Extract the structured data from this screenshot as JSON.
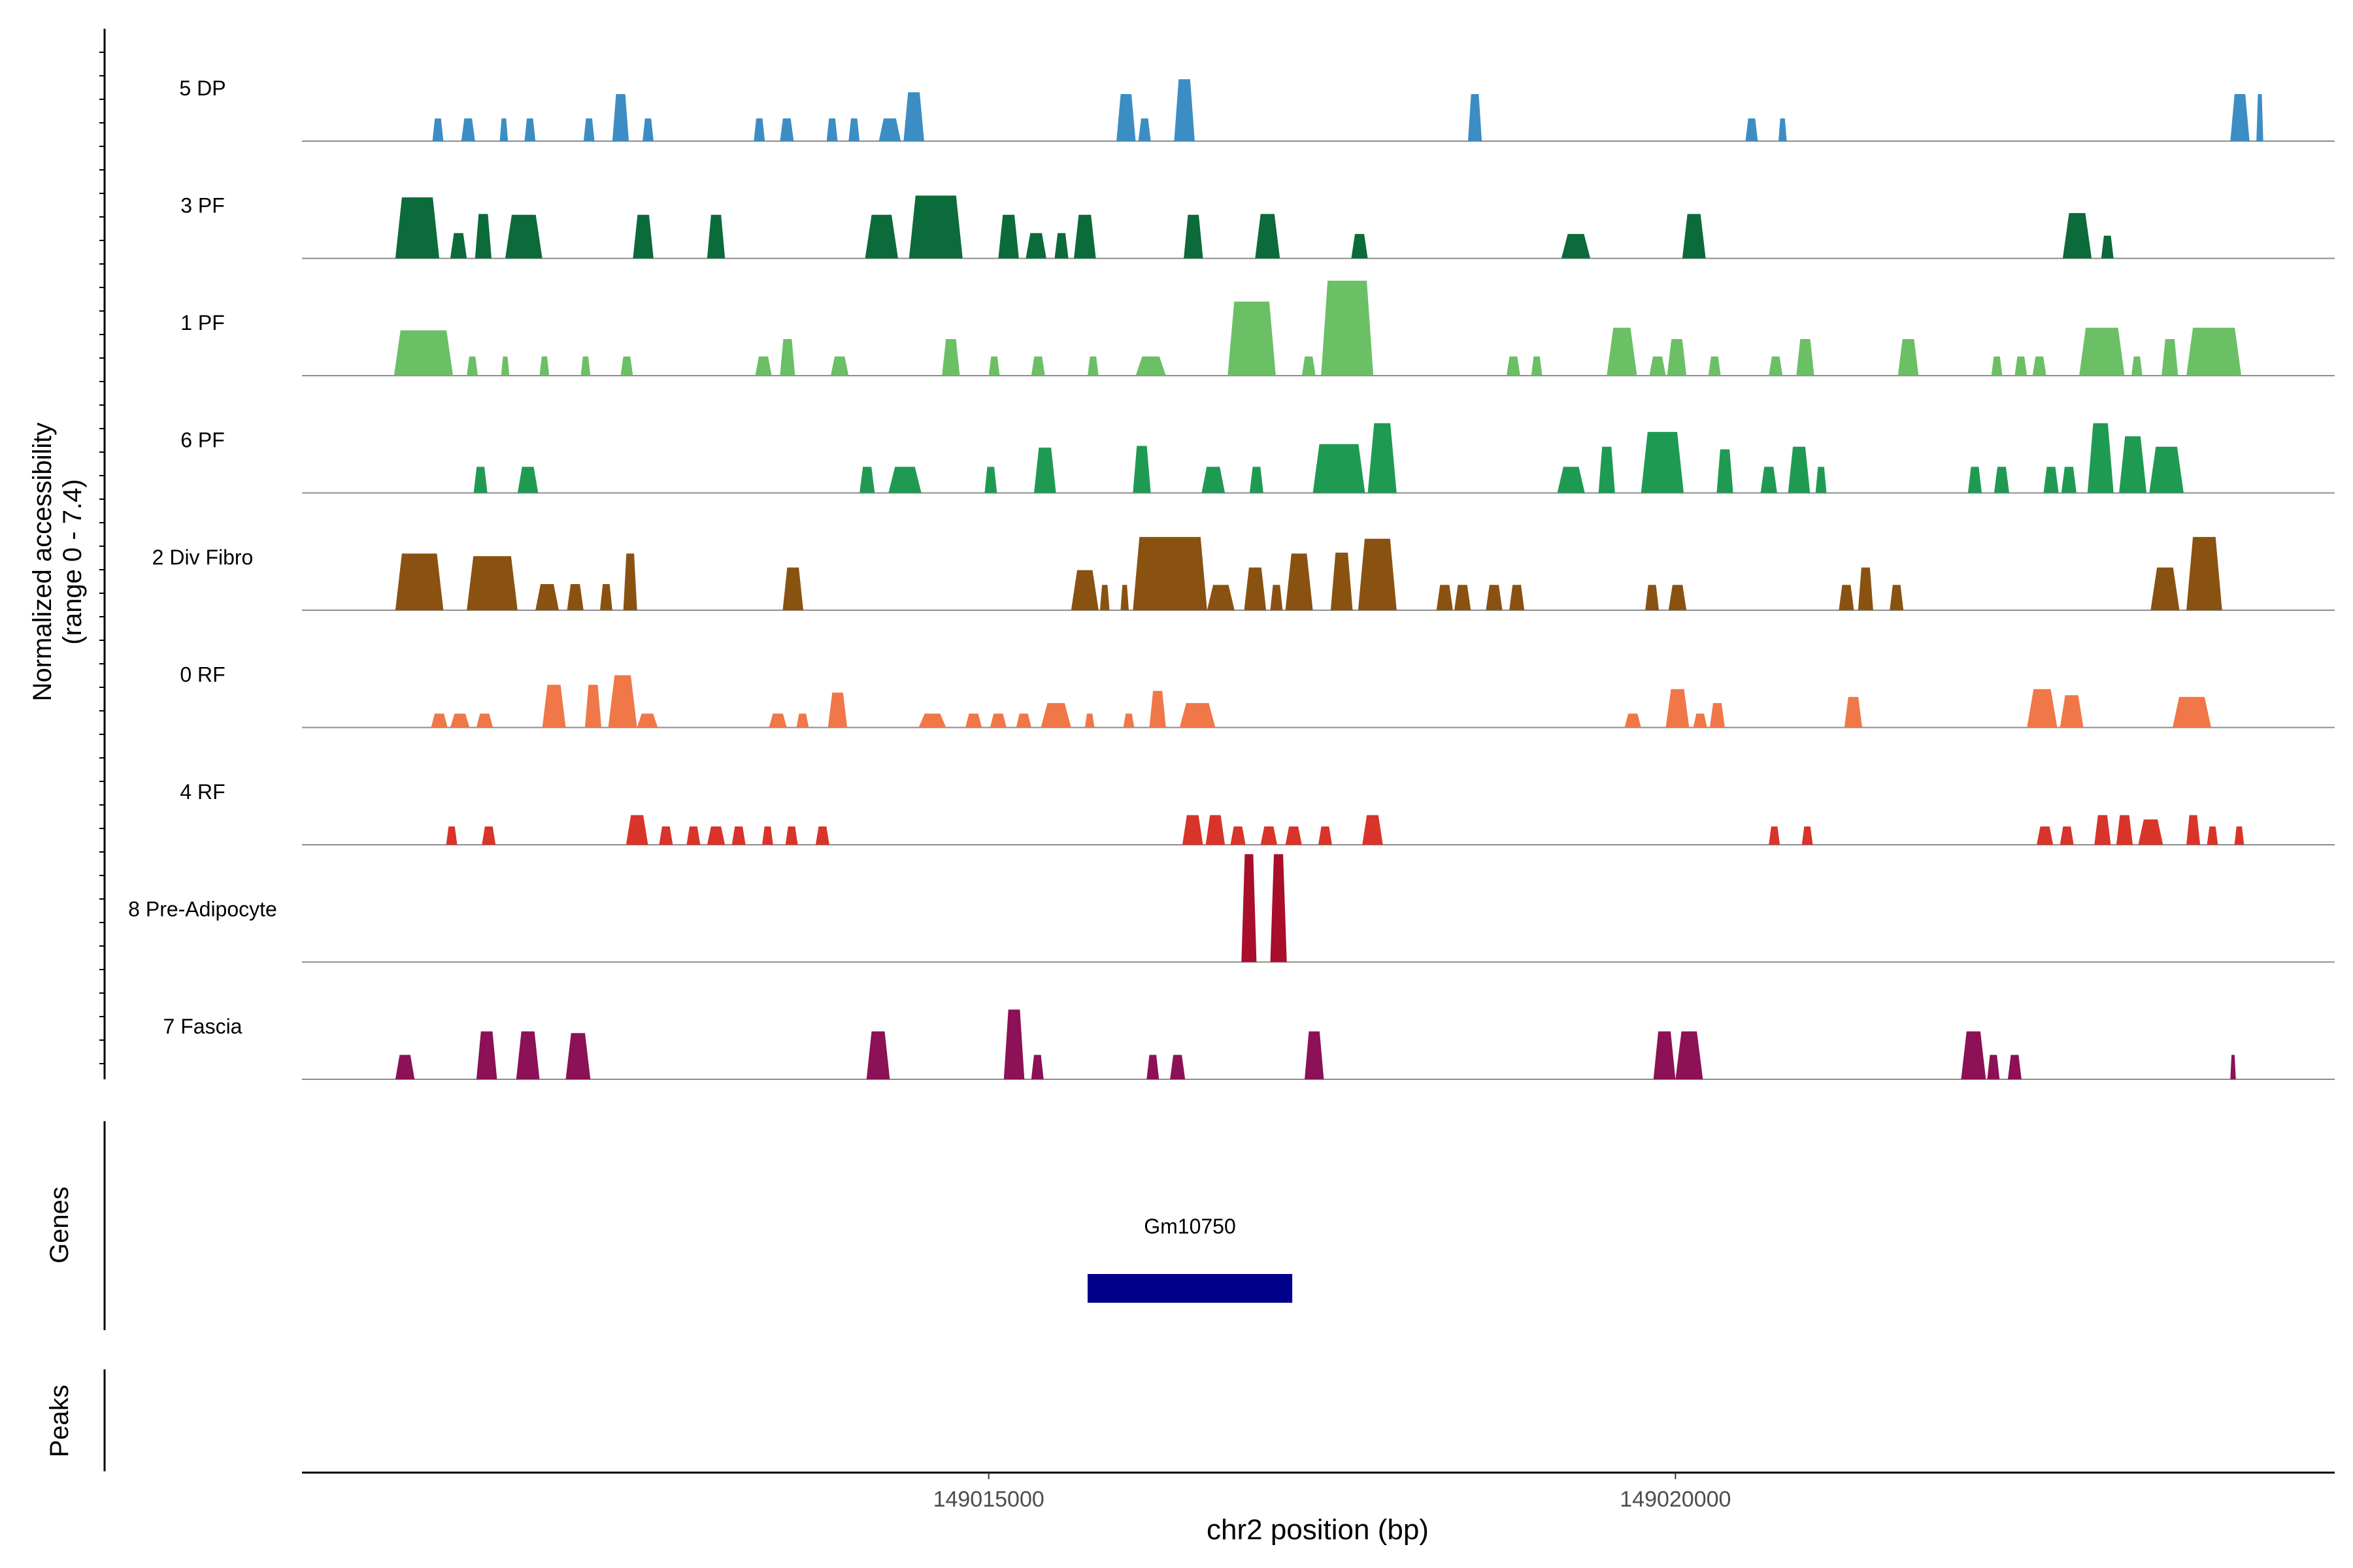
{
  "chart_data": {
    "type": "area",
    "title": "",
    "ylabel_line1": "Normalized accessibility",
    "ylabel_line2": "(range 0 - 7.4)",
    "xlabel": "chr2 position (bp)",
    "xlim": [
      149010000,
      149024800
    ],
    "ylim": [
      0,
      7.4
    ],
    "x_ticks": [
      149015000,
      149020000
    ],
    "x_tick_labels": [
      "149015000",
      "149020000"
    ],
    "genes_label": "Genes",
    "peaks_label": "Peaks",
    "gene": {
      "name": "Gm10750",
      "start": 149015720,
      "end": 149017210
    },
    "tracks": [
      {
        "name": "5 DP",
        "color": "#3C8DC4",
        "peaks": [
          [
            149010950,
            149011030,
            2.6
          ],
          [
            149011160,
            149011260,
            2.6
          ],
          [
            149011440,
            149011500,
            2.6
          ],
          [
            149011620,
            149011700,
            2.6
          ],
          [
            149012050,
            149012130,
            2.6
          ],
          [
            149012260,
            149012380,
            5.4
          ],
          [
            149012480,
            149012560,
            2.6
          ],
          [
            149013290,
            149013370,
            2.6
          ],
          [
            149013480,
            149013580,
            2.6
          ],
          [
            149013820,
            149013900,
            2.6
          ],
          [
            149013980,
            149014060,
            2.6
          ],
          [
            149014200,
            149014360,
            2.6
          ],
          [
            149014380,
            149014530,
            5.6
          ],
          [
            149015930,
            149016070,
            5.4
          ],
          [
            149016090,
            149016180,
            2.6
          ],
          [
            149016350,
            149016500,
            7.1
          ],
          [
            149018490,
            149018590,
            5.4
          ],
          [
            149020510,
            149020600,
            2.6
          ],
          [
            149020750,
            149020810,
            2.6
          ],
          [
            149024040,
            149024180,
            5.4
          ],
          [
            149024230,
            149024280,
            5.4
          ]
        ]
      },
      {
        "name": "3 PF",
        "color": "#0B6B3A",
        "peaks": [
          [
            149010680,
            149011000,
            7.0
          ],
          [
            149011080,
            149011200,
            2.9
          ],
          [
            149011260,
            149011380,
            5.1
          ],
          [
            149011480,
            149011750,
            5.0
          ],
          [
            149012410,
            149012560,
            5.0
          ],
          [
            149012950,
            149013080,
            5.0
          ],
          [
            149014100,
            149014340,
            5.0
          ],
          [
            149014420,
            149014810,
            7.2
          ],
          [
            149015070,
            149015220,
            5.0
          ],
          [
            149015270,
            149015420,
            2.9
          ],
          [
            149015480,
            149015580,
            2.9
          ],
          [
            149015620,
            149015780,
            5.0
          ],
          [
            149016420,
            149016560,
            5.0
          ],
          [
            149016940,
            149017120,
            5.1
          ],
          [
            149017640,
            149017760,
            2.8
          ],
          [
            149019170,
            149019380,
            2.8
          ],
          [
            149020050,
            149020220,
            5.1
          ],
          [
            149022820,
            149023030,
            5.2
          ],
          [
            149023100,
            149023190,
            2.6
          ]
        ]
      },
      {
        "name": "1 PF",
        "color": "#6BBF65",
        "peaks": [
          [
            149010670,
            149011100,
            5.2
          ],
          [
            149011200,
            149011280,
            2.2
          ],
          [
            149011450,
            149011510,
            2.2
          ],
          [
            149011730,
            149011800,
            2.2
          ],
          [
            149012030,
            149012100,
            2.2
          ],
          [
            149012320,
            149012410,
            2.2
          ],
          [
            149013300,
            149013420,
            2.2
          ],
          [
            149013480,
            149013590,
            4.2
          ],
          [
            149013850,
            149013980,
            2.2
          ],
          [
            149014660,
            149014790,
            4.2
          ],
          [
            149015000,
            149015080,
            2.2
          ],
          [
            149015310,
            149015410,
            2.2
          ],
          [
            149015720,
            149015800,
            2.2
          ],
          [
            149016070,
            149016290,
            2.2
          ],
          [
            149016740,
            149017090,
            8.5
          ],
          [
            149017280,
            149017380,
            2.2
          ],
          [
            149017420,
            149017800,
            10.9
          ],
          [
            149018770,
            149018870,
            2.2
          ],
          [
            149018950,
            149019030,
            2.2
          ],
          [
            149019500,
            149019720,
            5.5
          ],
          [
            149019810,
            149019930,
            2.2
          ],
          [
            149019940,
            149020080,
            4.2
          ],
          [
            149020240,
            149020330,
            2.2
          ],
          [
            149020680,
            149020780,
            2.2
          ],
          [
            149020880,
            149021010,
            4.2
          ],
          [
            149021620,
            149021770,
            4.2
          ],
          [
            149022300,
            149022380,
            2.2
          ],
          [
            149022470,
            149022560,
            2.2
          ],
          [
            149022600,
            149022700,
            2.2
          ],
          [
            149022940,
            149023270,
            5.5
          ],
          [
            149023320,
            149023400,
            2.2
          ],
          [
            149023540,
            149023660,
            4.2
          ],
          [
            149023720,
            149024120,
            5.5
          ]
        ]
      },
      {
        "name": "6 PF",
        "color": "#1F9A52",
        "peaks": [
          [
            149011250,
            149011350,
            3.0
          ],
          [
            149011570,
            149011720,
            3.0
          ],
          [
            149014060,
            149014170,
            3.0
          ],
          [
            149014270,
            149014510,
            3.0
          ],
          [
            149014970,
            149015060,
            3.0
          ],
          [
            149015330,
            149015490,
            5.2
          ],
          [
            149016050,
            149016180,
            5.4
          ],
          [
            149016550,
            149016720,
            3.0
          ],
          [
            149016900,
            149017000,
            3.0
          ],
          [
            149017360,
            149017740,
            5.6
          ],
          [
            149017760,
            149017970,
            8.0
          ],
          [
            149019140,
            149019340,
            3.0
          ],
          [
            149019440,
            149019560,
            5.3
          ],
          [
            149019750,
            149020060,
            7.0
          ],
          [
            149020300,
            149020420,
            5.0
          ],
          [
            149020620,
            149020740,
            3.0
          ],
          [
            149020820,
            149020980,
            5.3
          ],
          [
            149021020,
            149021100,
            3.0
          ],
          [
            149022130,
            149022230,
            3.0
          ],
          [
            149022320,
            149022430,
            3.0
          ],
          [
            149022680,
            149022790,
            3.0
          ],
          [
            149022810,
            149022920,
            3.0
          ],
          [
            149023000,
            149023190,
            8.0
          ],
          [
            149023230,
            149023430,
            6.5
          ],
          [
            149023450,
            149023700,
            5.3
          ]
        ]
      },
      {
        "name": "2 Div Fibro",
        "color": "#8A5210",
        "peaks": [
          [
            149010680,
            149011030,
            6.5
          ],
          [
            149011200,
            149011570,
            6.2
          ],
          [
            149011700,
            149011870,
            3.0
          ],
          [
            149011930,
            149012050,
            3.0
          ],
          [
            149012170,
            149012260,
            3.0
          ],
          [
            149012340,
            149012440,
            6.5
          ],
          [
            149013500,
            149013650,
            4.9
          ],
          [
            149015600,
            149015800,
            4.6
          ],
          [
            149015810,
            149015880,
            2.9
          ],
          [
            149015960,
            149016020,
            2.9
          ],
          [
            149016050,
            149016590,
            8.4
          ],
          [
            149016590,
            149016790,
            2.9
          ],
          [
            149016860,
            149017020,
            4.9
          ],
          [
            149017050,
            149017140,
            2.9
          ],
          [
            149017160,
            149017360,
            6.5
          ],
          [
            149017490,
            149017650,
            6.6
          ],
          [
            149017690,
            149017970,
            8.2
          ],
          [
            149018260,
            149018380,
            2.9
          ],
          [
            149018390,
            149018510,
            2.9
          ],
          [
            149018620,
            149018740,
            2.9
          ],
          [
            149018790,
            149018900,
            2.9
          ],
          [
            149019780,
            149019880,
            2.9
          ],
          [
            149019950,
            149020080,
            2.9
          ],
          [
            149021190,
            149021300,
            2.9
          ],
          [
            149021330,
            149021440,
            4.9
          ],
          [
            149021560,
            149021660,
            2.9
          ],
          [
            149023460,
            149023670,
            4.9
          ],
          [
            149023720,
            149023980,
            8.4
          ]
        ]
      },
      {
        "name": "0 RF",
        "color": "#F07748",
        "peaks": [
          [
            149010940,
            149011060,
            1.6
          ],
          [
            149011080,
            149011220,
            1.6
          ],
          [
            149011270,
            149011390,
            1.6
          ],
          [
            149011750,
            149011920,
            4.9
          ],
          [
            149012060,
            149012180,
            4.9
          ],
          [
            149012230,
            149012440,
            6.0
          ],
          [
            149012440,
            149012590,
            1.6
          ],
          [
            149013400,
            149013530,
            1.6
          ],
          [
            149013600,
            149013690,
            1.6
          ],
          [
            149013830,
            149013970,
            4.0
          ],
          [
            149014490,
            149014690,
            1.6
          ],
          [
            149014830,
            149014950,
            1.6
          ],
          [
            149015010,
            149015130,
            1.6
          ],
          [
            149015200,
            149015310,
            1.6
          ],
          [
            149015380,
            149015600,
            2.8
          ],
          [
            149015700,
            149015770,
            1.6
          ],
          [
            149015980,
            149016060,
            1.6
          ],
          [
            149016170,
            149016290,
            4.2
          ],
          [
            149016390,
            149016650,
            2.8
          ],
          [
            149019630,
            149019750,
            1.6
          ],
          [
            149019930,
            149020100,
            4.4
          ],
          [
            149020130,
            149020230,
            1.6
          ],
          [
            149020250,
            149020360,
            2.8
          ],
          [
            149021230,
            149021360,
            3.5
          ],
          [
            149022560,
            149022780,
            4.4
          ],
          [
            149022800,
            149022970,
            3.7
          ],
          [
            149023620,
            149023900,
            3.5
          ]
        ]
      },
      {
        "name": "4 RF",
        "color": "#D8342A",
        "peaks": [
          [
            149011050,
            149011130,
            2.1
          ],
          [
            149011310,
            149011410,
            2.1
          ],
          [
            149012360,
            149012520,
            3.4
          ],
          [
            149012600,
            149012700,
            2.1
          ],
          [
            149012800,
            149012900,
            2.1
          ],
          [
            149012950,
            149013080,
            2.1
          ],
          [
            149013130,
            149013230,
            2.1
          ],
          [
            149013350,
            149013430,
            2.1
          ],
          [
            149013520,
            149013610,
            2.1
          ],
          [
            149013740,
            149013840,
            2.1
          ],
          [
            149016410,
            149016560,
            3.4
          ],
          [
            149016580,
            149016720,
            3.4
          ],
          [
            149016760,
            149016870,
            2.1
          ],
          [
            149016980,
            149017100,
            2.1
          ],
          [
            149017160,
            149017280,
            2.1
          ],
          [
            149017400,
            149017500,
            2.1
          ],
          [
            149017720,
            149017870,
            3.4
          ],
          [
            149020680,
            149020760,
            2.1
          ],
          [
            149020920,
            149021000,
            2.1
          ],
          [
            149022630,
            149022750,
            2.1
          ],
          [
            149022800,
            149022900,
            2.1
          ],
          [
            149023050,
            149023170,
            3.4
          ],
          [
            149023210,
            149023330,
            3.4
          ],
          [
            149023370,
            149023550,
            2.9
          ],
          [
            149023720,
            149023820,
            3.4
          ],
          [
            149023870,
            149023950,
            2.1
          ],
          [
            149024070,
            149024140,
            2.1
          ]
        ]
      },
      {
        "name": "8 Pre-Adipocyte",
        "color": "#A90E2B",
        "peaks": [
          [
            149016840,
            149016950,
            16.0
          ],
          [
            149017050,
            149017170,
            16.0
          ]
        ]
      },
      {
        "name": "7 Fascia",
        "color": "#8C1157",
        "peaks": [
          [
            149010680,
            149010820,
            2.8
          ],
          [
            149011270,
            149011420,
            5.5
          ],
          [
            149011560,
            149011730,
            5.5
          ],
          [
            149011920,
            149012100,
            5.3
          ],
          [
            149014110,
            149014280,
            5.5
          ],
          [
            149015110,
            149015260,
            8.0
          ],
          [
            149015310,
            149015400,
            2.8
          ],
          [
            149016150,
            149016240,
            2.8
          ],
          [
            149016320,
            149016430,
            2.8
          ],
          [
            149017300,
            149017440,
            5.5
          ],
          [
            149019840,
            149020000,
            5.5
          ],
          [
            149020000,
            149020200,
            5.5
          ],
          [
            149022080,
            149022260,
            5.5
          ],
          [
            149022270,
            149022360,
            2.8
          ],
          [
            149022420,
            149022520,
            2.8
          ],
          [
            149024040,
            149024080,
            2.8
          ]
        ]
      }
    ]
  }
}
